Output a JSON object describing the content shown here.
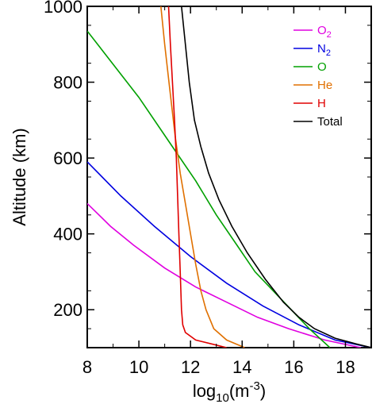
{
  "chart_data": {
    "type": "line",
    "xlabel": {
      "base": "log",
      "sub": "10",
      "mid": "(m",
      "sup": "-3",
      "end": ")"
    },
    "ylabel": "Altitude (km)",
    "xlim": [
      8,
      19
    ],
    "ylim": [
      100,
      1000
    ],
    "x_ticks": [
      8,
      10,
      12,
      14,
      16,
      18
    ],
    "y_ticks": [
      200,
      400,
      600,
      800,
      1000
    ],
    "grid": false,
    "legend_position": "top-right",
    "series": [
      {
        "name": "O",
        "sub": "2",
        "color": "#e000e0",
        "points": [
          [
            18.6,
            100
          ],
          [
            17.2,
            120
          ],
          [
            15.8,
            150
          ],
          [
            14.6,
            180
          ],
          [
            13.4,
            220
          ],
          [
            12.2,
            260
          ],
          [
            11.0,
            310
          ],
          [
            9.8,
            370
          ],
          [
            8.9,
            420
          ],
          [
            8.0,
            480
          ]
        ]
      },
      {
        "name": "N",
        "sub": "2",
        "color": "#0000e0",
        "points": [
          [
            19.0,
            100
          ],
          [
            17.6,
            120
          ],
          [
            16.2,
            160
          ],
          [
            14.8,
            210
          ],
          [
            13.4,
            270
          ],
          [
            12.0,
            340
          ],
          [
            10.6,
            420
          ],
          [
            9.3,
            500
          ],
          [
            8.0,
            590
          ]
        ]
      },
      {
        "name": "O",
        "color": "#00a000",
        "points": [
          [
            17.4,
            100
          ],
          [
            16.6,
            150
          ],
          [
            15.9,
            200
          ],
          [
            15.2,
            250
          ],
          [
            14.5,
            300
          ],
          [
            13.8,
            370
          ],
          [
            13.0,
            450
          ],
          [
            12.2,
            540
          ],
          [
            11.2,
            640
          ],
          [
            10.0,
            760
          ],
          [
            8.0,
            935
          ]
        ]
      },
      {
        "name": "He",
        "color": "#e07000",
        "points": [
          [
            14.1,
            100
          ],
          [
            13.4,
            120
          ],
          [
            12.9,
            150
          ],
          [
            12.6,
            200
          ],
          [
            12.4,
            250
          ],
          [
            12.2,
            320
          ],
          [
            12.0,
            400
          ],
          [
            11.8,
            480
          ],
          [
            11.6,
            560
          ],
          [
            11.4,
            660
          ],
          [
            11.2,
            780
          ],
          [
            11.0,
            900
          ],
          [
            10.85,
            1000
          ]
        ]
      },
      {
        "name": "H",
        "color": "#e00000",
        "points": [
          [
            13.4,
            100
          ],
          [
            12.8,
            110
          ],
          [
            12.2,
            120
          ],
          [
            11.8,
            140
          ],
          [
            11.7,
            160
          ],
          [
            11.65,
            200
          ],
          [
            11.6,
            300
          ],
          [
            11.55,
            400
          ],
          [
            11.5,
            500
          ],
          [
            11.45,
            600
          ],
          [
            11.38,
            700
          ],
          [
            11.3,
            800
          ],
          [
            11.22,
            900
          ],
          [
            11.15,
            1000
          ]
        ]
      },
      {
        "name": "Total",
        "color": "#000000",
        "points": [
          [
            19.0,
            100
          ],
          [
            18.4,
            110
          ],
          [
            17.6,
            125
          ],
          [
            16.8,
            150
          ],
          [
            16.2,
            180
          ],
          [
            15.6,
            220
          ],
          [
            14.9,
            280
          ],
          [
            14.2,
            350
          ],
          [
            13.6,
            420
          ],
          [
            13.1,
            490
          ],
          [
            12.7,
            560
          ],
          [
            12.4,
            630
          ],
          [
            12.15,
            700
          ],
          [
            11.95,
            800
          ],
          [
            11.8,
            900
          ],
          [
            11.65,
            1000
          ]
        ]
      }
    ]
  }
}
